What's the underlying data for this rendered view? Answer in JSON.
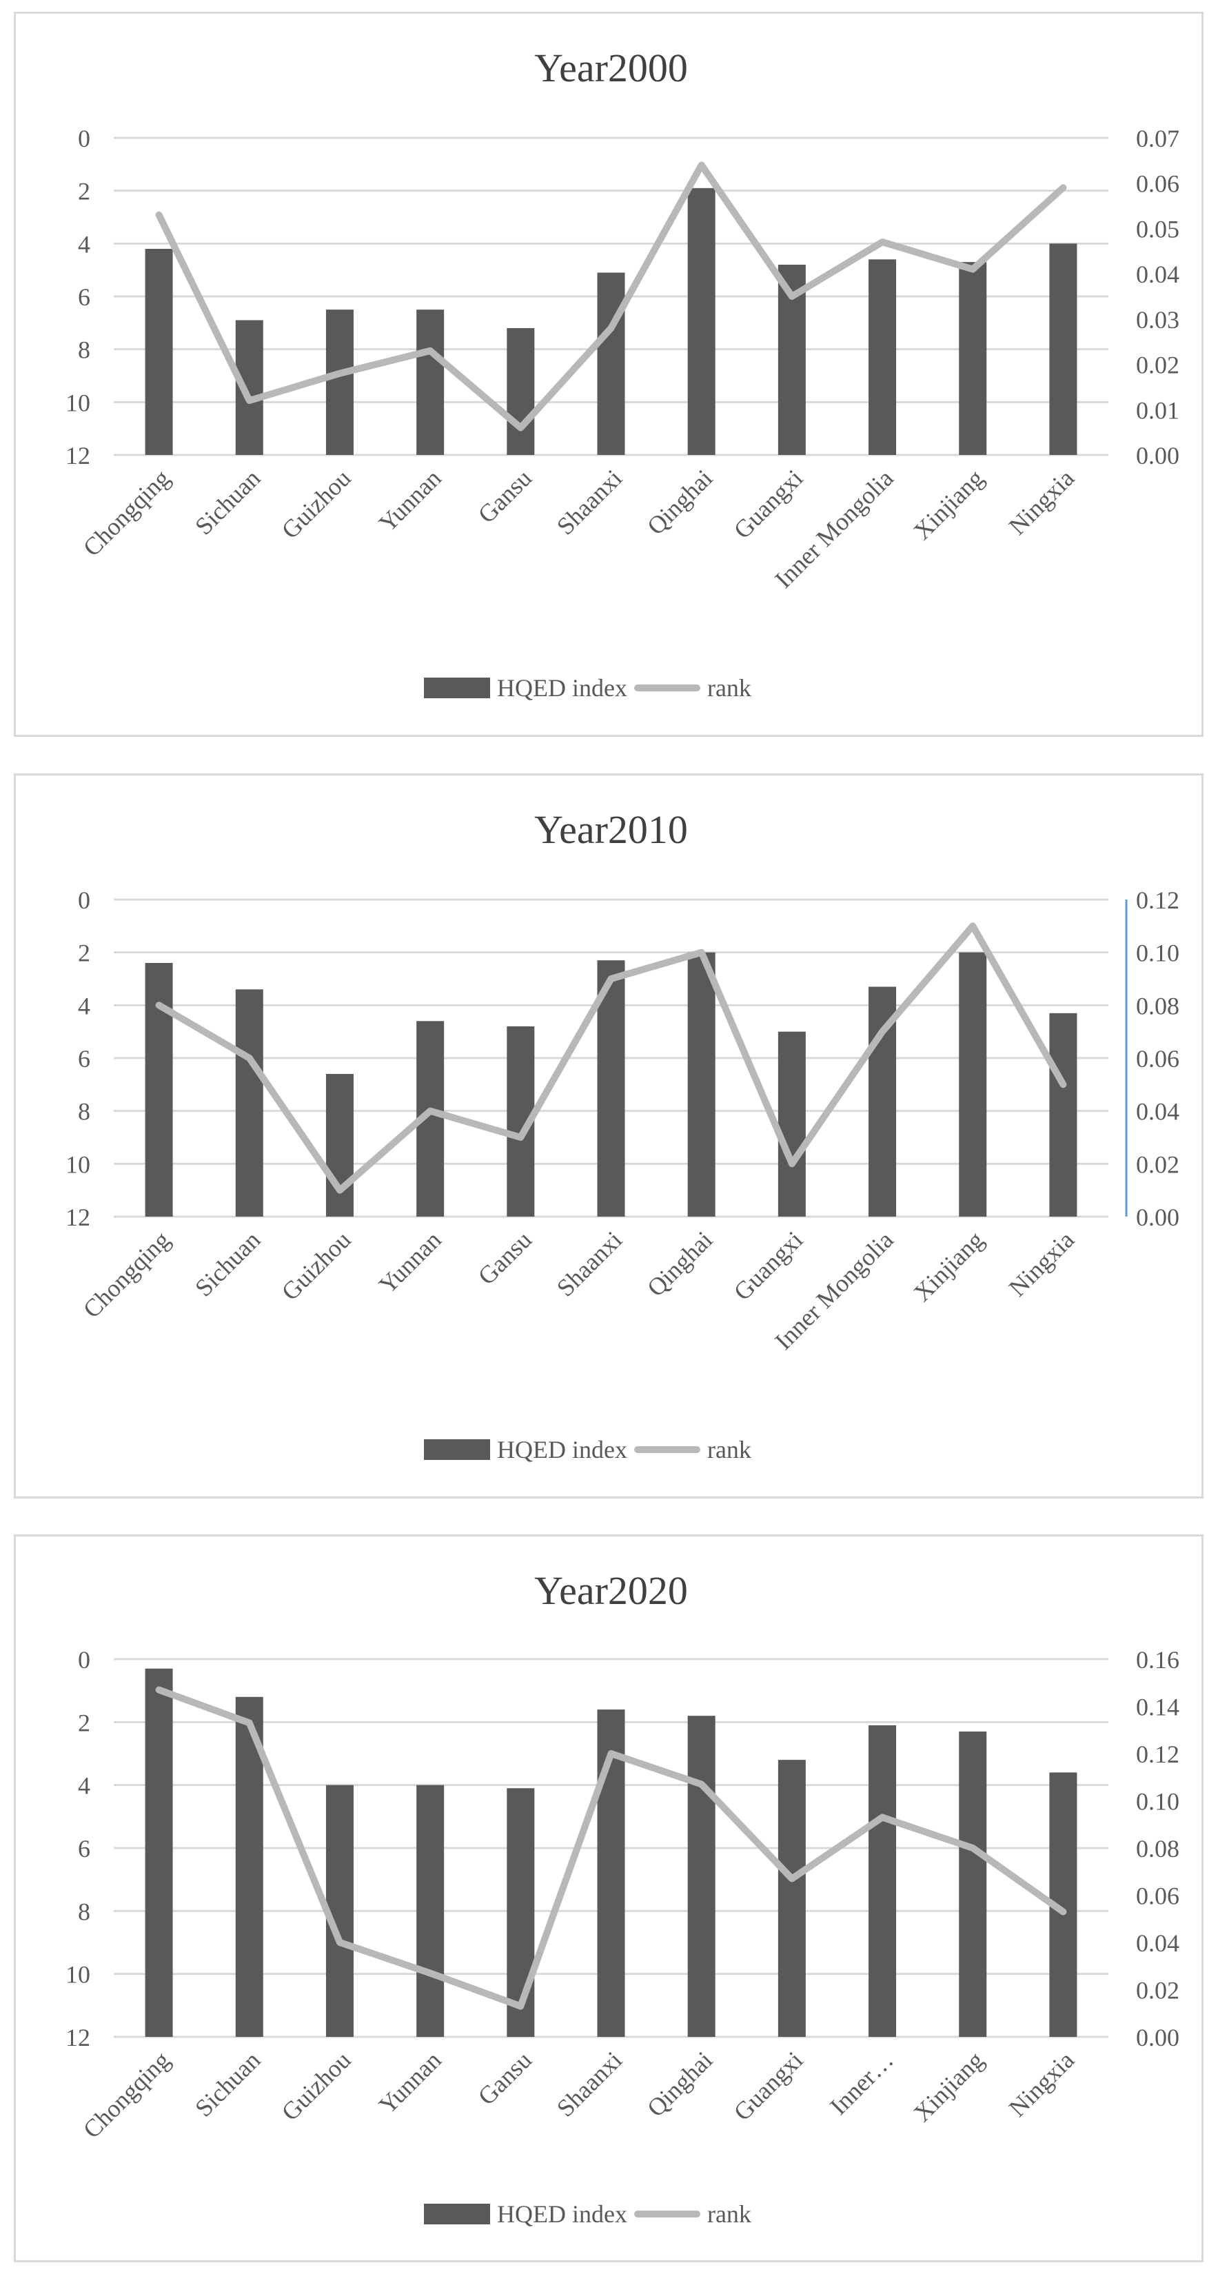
{
  "colors": {
    "bar": "#595959",
    "line": "#b8b8b8",
    "grid": "#d9d9d9",
    "text": "#595959",
    "title": "#404040",
    "right_axis_accent": "#5b9bd5"
  },
  "legend": {
    "bar_label": "HQED index",
    "line_label": "rank"
  },
  "chart_data": [
    {
      "type": "bar",
      "title": "Year2000",
      "categories": [
        "Chongqing",
        "Sichuan",
        "Guizhou",
        "Yunnan",
        "Gansu",
        "Shaanxi",
        "Qinghai",
        "Guangxi",
        "Inner Mongolia",
        "Xinjiang",
        "Ningxia"
      ],
      "series": [
        {
          "name": "HQED index",
          "type": "bar",
          "axis": "left",
          "values": [
            4.2,
            6.9,
            6.5,
            6.5,
            7.2,
            5.1,
            1.9,
            4.8,
            4.6,
            4.7,
            4.0
          ]
        },
        {
          "name": "rank",
          "type": "line",
          "axis": "right",
          "values": [
            0.053,
            0.012,
            0.018,
            0.023,
            0.006,
            0.028,
            0.064,
            0.035,
            0.047,
            0.041,
            0.059
          ]
        }
      ],
      "left_axis": {
        "ylim": [
          0,
          12
        ],
        "inverted": true,
        "ticks": [
          "0",
          "2",
          "4",
          "6",
          "8",
          "10",
          "12"
        ]
      },
      "right_axis": {
        "ylim": [
          0,
          0.07
        ],
        "ticks": [
          "0.07",
          "0.06",
          "0.05",
          "0.04",
          "0.03",
          "0.02",
          "0.01",
          "0.00"
        ],
        "accent": false
      }
    },
    {
      "type": "bar",
      "title": "Year2010",
      "categories": [
        "Chongqing",
        "Sichuan",
        "Guizhou",
        "Yunnan",
        "Gansu",
        "Shaanxi",
        "Qinghai",
        "Guangxi",
        "Inner Mongolia",
        "Xinjiang",
        "Ningxia"
      ],
      "series": [
        {
          "name": "HQED index",
          "type": "bar",
          "axis": "left",
          "values": [
            2.4,
            3.4,
            6.6,
            4.6,
            4.8,
            2.3,
            2.0,
            5.0,
            3.3,
            2.0,
            4.3
          ]
        },
        {
          "name": "rank",
          "type": "line",
          "axis": "right",
          "values": [
            0.08,
            0.06,
            0.01,
            0.04,
            0.03,
            0.09,
            0.1,
            0.02,
            0.07,
            0.11,
            0.05
          ]
        }
      ],
      "left_axis": {
        "ylim": [
          0,
          12
        ],
        "inverted": true,
        "ticks": [
          "0",
          "2",
          "4",
          "6",
          "8",
          "10",
          "12"
        ]
      },
      "right_axis": {
        "ylim": [
          0,
          0.12
        ],
        "ticks": [
          "0.12",
          "0.10",
          "0.08",
          "0.06",
          "0.04",
          "0.02",
          "0.00"
        ],
        "accent": true
      }
    },
    {
      "type": "bar",
      "title": "Year2020",
      "categories": [
        "Chongqing",
        "Sichuan",
        "Guizhou",
        "Yunnan",
        "Gansu",
        "Shaanxi",
        "Qinghai",
        "Guangxi",
        "Inner…",
        "Xinjiang",
        "Ningxia"
      ],
      "series": [
        {
          "name": "HQED index",
          "type": "bar",
          "axis": "left",
          "values": [
            0.3,
            1.2,
            4.0,
            4.0,
            4.1,
            1.6,
            1.8,
            3.2,
            2.1,
            2.3,
            3.6
          ]
        },
        {
          "name": "rank",
          "type": "line",
          "axis": "right",
          "values": [
            0.147,
            0.133,
            0.04,
            0.027,
            0.013,
            0.12,
            0.107,
            0.067,
            0.093,
            0.08,
            0.053
          ]
        }
      ],
      "left_axis": {
        "ylim": [
          0,
          12
        ],
        "inverted": true,
        "ticks": [
          "0",
          "2",
          "4",
          "6",
          "8",
          "10",
          "12"
        ]
      },
      "right_axis": {
        "ylim": [
          0,
          0.16
        ],
        "ticks": [
          "0.16",
          "0.14",
          "0.12",
          "0.10",
          "0.08",
          "0.06",
          "0.04",
          "0.02",
          "0.00"
        ],
        "accent": false
      }
    }
  ]
}
